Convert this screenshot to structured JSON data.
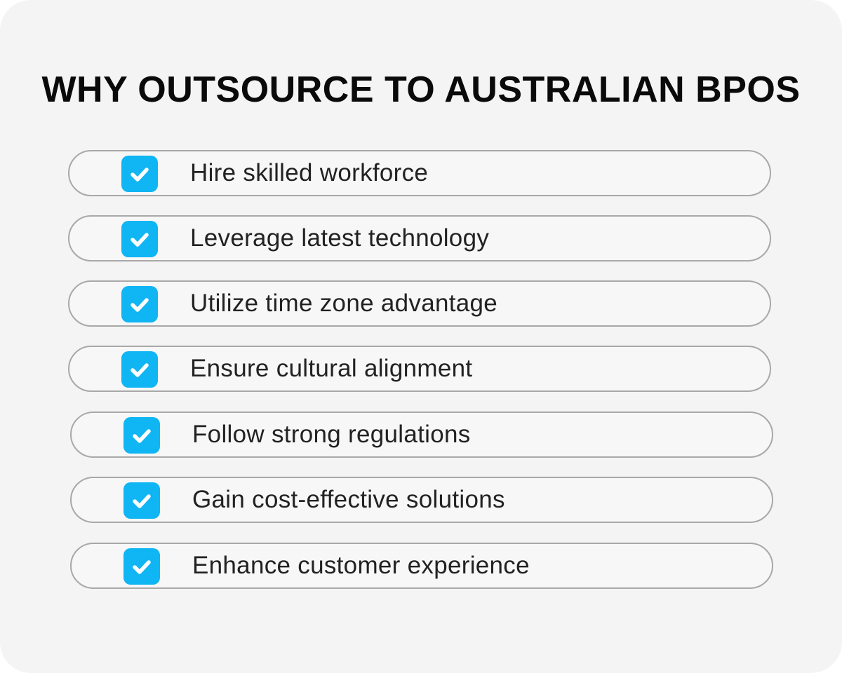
{
  "header": {
    "title": "WHY OUTSOURCE TO AUSTRALIAN BPOS"
  },
  "items": [
    "Hire skilled workforce",
    "Leverage latest technology",
    "Utilize time zone advantage",
    "Ensure cultural alignment",
    "Follow strong regulations",
    "Gain cost-effective solutions",
    "Enhance customer experience"
  ]
}
